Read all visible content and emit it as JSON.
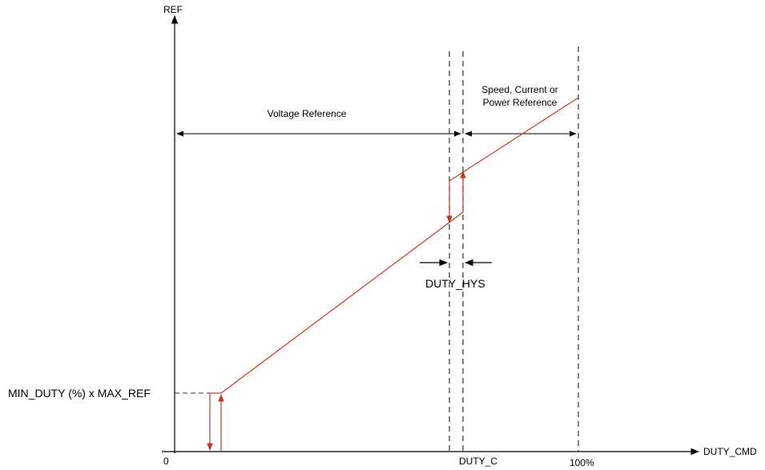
{
  "axes": {
    "y_label": "REF",
    "x_label": "DUTY_CMD",
    "origin_label": "0",
    "duty_c_label": "DUTY_C",
    "full_scale_label": "100%",
    "min_ref_label": "MIN_DUTY (%)  x MAX_REF"
  },
  "regions": {
    "voltage_reference": "Voltage Reference",
    "other_reference_line1": "Speed, Current or",
    "other_reference_line2": "Power Reference"
  },
  "hysteresis": {
    "label": "DUTY_HYS"
  },
  "colors": {
    "curve": "#c0392b",
    "axes": "#000000",
    "dashed": "#333333"
  }
}
